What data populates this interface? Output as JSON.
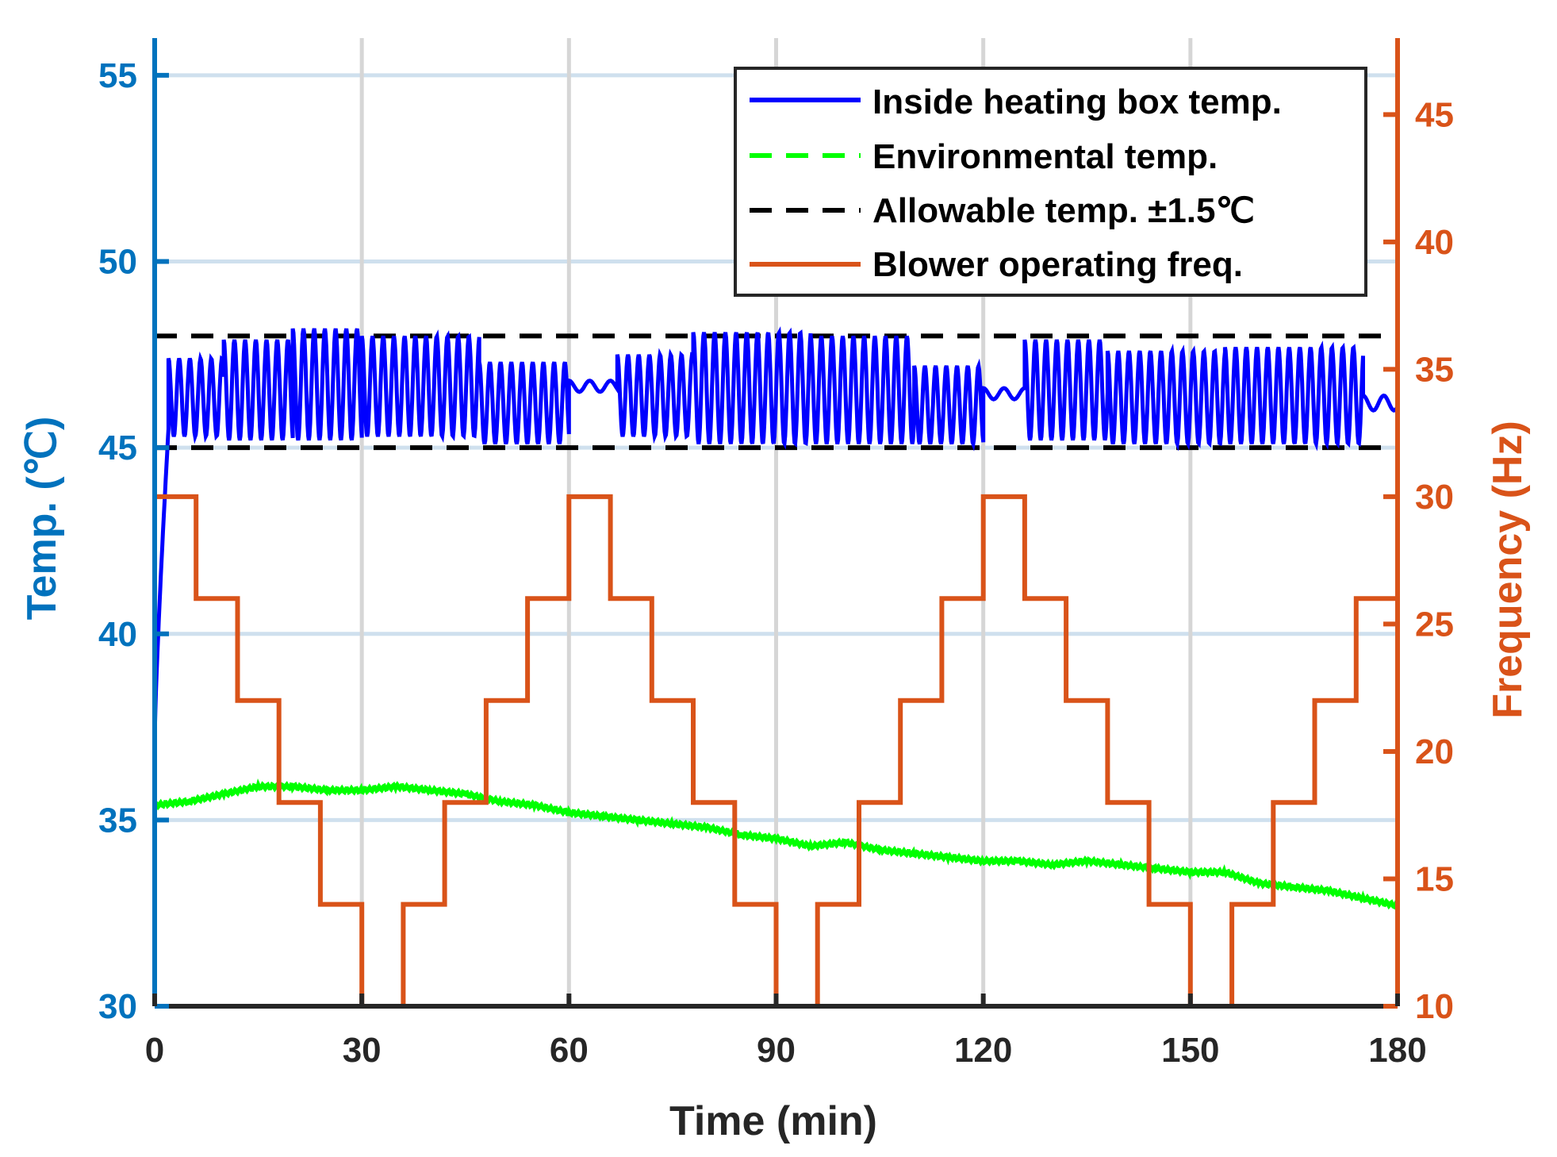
{
  "chart_data": {
    "type": "line",
    "xlabel": "Time (min)",
    "ylabel_left": "Temp. (℃)",
    "ylabel_right": "Frequency (Hz)",
    "xlim": [
      0,
      180
    ],
    "ylim_left": [
      30,
      56
    ],
    "ylim_right": [
      10,
      48
    ],
    "xticks": [
      "0",
      "30",
      "60",
      "90",
      "120",
      "150",
      "180"
    ],
    "xtick_values": [
      0,
      30,
      60,
      90,
      120,
      150,
      180
    ],
    "yticks_left": [
      "30",
      "35",
      "40",
      "45",
      "50",
      "55"
    ],
    "ytick_values_left": [
      30,
      35,
      40,
      45,
      50,
      55
    ],
    "yticks_right": [
      "10",
      "15",
      "20",
      "25",
      "30",
      "35",
      "40",
      "45"
    ],
    "ytick_values_right": [
      10,
      15,
      20,
      25,
      30,
      35,
      40,
      45
    ],
    "legend": {
      "location": "top-right",
      "entries": [
        {
          "label": "Inside heating box temp.",
          "color": "#0000FF",
          "style": "solid"
        },
        {
          "label": "Environmental temp.",
          "color": "#00FF00",
          "style": "dashed"
        },
        {
          "label": "Allowable temp. ±1.5℃",
          "color": "#000000",
          "style": "dashed"
        },
        {
          "label": "Blower operating freq.",
          "color": "#D95319",
          "style": "solid"
        }
      ]
    },
    "series": [
      {
        "name": "Inside heating box temp.",
        "axis": "left",
        "color": "#0000FF",
        "oscillation_bands": [
          {
            "t_start": 0,
            "t_end": 2,
            "low": 37.2,
            "high": 45.5
          },
          {
            "t_start": 2,
            "t_end": 10,
            "low": 45.3,
            "high": 47.4
          },
          {
            "t_start": 10,
            "t_end": 20,
            "low": 45.2,
            "high": 47.9
          },
          {
            "t_start": 20,
            "t_end": 30,
            "low": 45.2,
            "high": 48.2
          },
          {
            "t_start": 30,
            "t_end": 47,
            "low": 45.3,
            "high": 48.0
          },
          {
            "t_start": 47,
            "t_end": 60,
            "low": 45.1,
            "high": 47.3
          },
          {
            "t_start": 60,
            "t_end": 67,
            "low": 46.5,
            "high": 46.8
          },
          {
            "t_start": 67,
            "t_end": 78,
            "low": 45.3,
            "high": 47.5
          },
          {
            "t_start": 78,
            "t_end": 95,
            "low": 45.1,
            "high": 48.1
          },
          {
            "t_start": 95,
            "t_end": 110,
            "low": 45.1,
            "high": 48.0
          },
          {
            "t_start": 110,
            "t_end": 120,
            "low": 45.1,
            "high": 47.2
          },
          {
            "t_start": 120,
            "t_end": 126,
            "low": 46.3,
            "high": 46.6
          },
          {
            "t_start": 126,
            "t_end": 138,
            "low": 45.2,
            "high": 47.9
          },
          {
            "t_start": 138,
            "t_end": 155,
            "low": 45.1,
            "high": 47.6
          },
          {
            "t_start": 155,
            "t_end": 175,
            "low": 45.1,
            "high": 47.7
          },
          {
            "t_start": 175,
            "t_end": 180,
            "low": 46.0,
            "high": 46.4
          }
        ]
      },
      {
        "name": "Environmental temp.",
        "axis": "left",
        "color": "#00FF00",
        "x": [
          0,
          5,
          10,
          15,
          20,
          25,
          30,
          35,
          40,
          45,
          50,
          55,
          60,
          65,
          70,
          75,
          80,
          85,
          90,
          95,
          100,
          105,
          110,
          115,
          120,
          125,
          130,
          135,
          140,
          145,
          150,
          155,
          160,
          165,
          170,
          175,
          180
        ],
        "y": [
          35.4,
          35.5,
          35.7,
          35.9,
          35.9,
          35.8,
          35.8,
          35.9,
          35.8,
          35.7,
          35.5,
          35.4,
          35.2,
          35.1,
          35.0,
          34.9,
          34.8,
          34.6,
          34.5,
          34.3,
          34.4,
          34.2,
          34.1,
          34.0,
          33.9,
          33.9,
          33.8,
          33.9,
          33.8,
          33.7,
          33.6,
          33.6,
          33.3,
          33.2,
          33.1,
          32.9,
          32.7
        ]
      },
      {
        "name": "Allowable temp. upper",
        "axis": "left",
        "color": "#000000",
        "x": [
          0,
          180
        ],
        "y": [
          48,
          48
        ]
      },
      {
        "name": "Allowable temp. lower",
        "axis": "left",
        "color": "#000000",
        "x": [
          0,
          180
        ],
        "y": [
          45,
          45
        ]
      },
      {
        "name": "Blower operating freq.",
        "axis": "right",
        "color": "#D95319",
        "x": [
          0,
          6,
          12,
          18,
          24,
          30,
          36,
          42,
          48,
          54,
          60,
          66,
          72,
          78,
          84,
          90,
          96,
          102,
          108,
          114,
          120,
          126,
          132,
          138,
          144,
          150,
          156,
          162,
          168,
          174,
          180
        ],
        "y": [
          30,
          26,
          22,
          18,
          14,
          10,
          14,
          18,
          22,
          26,
          30,
          26,
          22,
          18,
          14,
          10,
          14,
          18,
          22,
          26,
          30,
          26,
          22,
          18,
          14,
          10,
          14,
          18,
          22,
          26,
          26
        ]
      }
    ]
  }
}
